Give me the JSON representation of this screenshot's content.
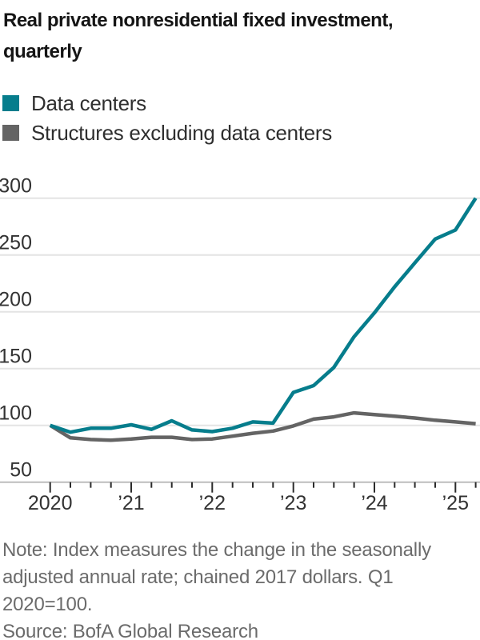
{
  "header": {
    "title_lines": [
      "Real private nonresidential fixed investment,",
      "quarterly"
    ]
  },
  "notes": {
    "lines": [
      "Note: Index measures the change in the seasonally",
      "adjusted annual rate; chained 2017 dollars. Q1",
      "2020=100."
    ],
    "source": "Source: BofA Global Research"
  },
  "chart_data": {
    "type": "line",
    "title": "Real private nonresidential fixed investment, quarterly",
    "xlabel": "",
    "ylabel": "",
    "x_tick_labels": [
      "2020",
      "’21",
      "’22",
      "’23",
      "’24",
      "’25"
    ],
    "y_ticks": [
      50,
      100,
      150,
      200,
      250,
      300
    ],
    "ylim": [
      50,
      310
    ],
    "x_range": [
      "Q1 2020",
      "Q2 2025"
    ],
    "grid": "horizontal",
    "legend_position": "top-left",
    "quarters": [
      "Q1 2020",
      "Q2 2020",
      "Q3 2020",
      "Q4 2020",
      "Q1 2021",
      "Q2 2021",
      "Q3 2021",
      "Q4 2021",
      "Q1 2022",
      "Q2 2022",
      "Q3 2022",
      "Q4 2022",
      "Q1 2023",
      "Q2 2023",
      "Q3 2023",
      "Q4 2023",
      "Q1 2024",
      "Q2 2024",
      "Q3 2024",
      "Q4 2024",
      "Q1 2025",
      "Q2 2025"
    ],
    "series": [
      {
        "name": "Data centers",
        "color": "#067d8c",
        "values": [
          100,
          94,
          97.5,
          97.5,
          100.5,
          96.5,
          104,
          96,
          94.5,
          97.5,
          103,
          102,
          129,
          135,
          151,
          178,
          199,
          222,
          243,
          264,
          272,
          300
        ]
      },
      {
        "name": "Structures excluding data centers",
        "color": "#646464",
        "values": [
          100,
          89,
          87.5,
          87,
          88,
          89.5,
          89.5,
          87.5,
          88,
          90.5,
          93,
          95,
          99.5,
          105.5,
          107.5,
          111,
          109.5,
          108,
          106.5,
          104.5,
          103,
          101.5
        ]
      }
    ],
    "style": {
      "grid_color": "#e4e4e4",
      "axis_color": "#bdbdbd",
      "tick_color": "#2b2b2b",
      "label_color": "#333333"
    }
  }
}
